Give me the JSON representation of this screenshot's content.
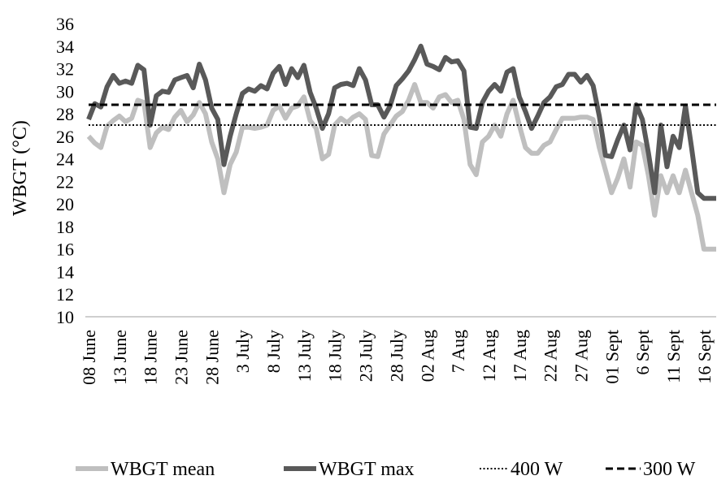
{
  "chart_data": {
    "type": "line",
    "ylabel": "WBGT (°C)",
    "xlabel": "",
    "ylim": [
      10,
      36
    ],
    "yticks": [
      10,
      12,
      14,
      16,
      18,
      20,
      22,
      24,
      26,
      28,
      30,
      32,
      34,
      36
    ],
    "grid": false,
    "legend_position": "bottom",
    "x_start": "08 June",
    "num_days": 103,
    "xtick_labels": [
      "08 June",
      "13 June",
      "18 June",
      "23 June",
      "28 June",
      "3 July",
      "8 July",
      "13 July",
      "18 July",
      "23 July",
      "28 July",
      "02 Aug",
      "7 Aug",
      "12 Aug",
      "17 Aug",
      "22 Aug",
      "27 Aug",
      "01 Sept",
      "6 Sept",
      "11 Sept",
      "16 Sept"
    ],
    "xtick_day_index": [
      0,
      5,
      10,
      15,
      20,
      25,
      30,
      35,
      40,
      45,
      50,
      55,
      60,
      65,
      70,
      75,
      80,
      85,
      90,
      95,
      100
    ],
    "series": [
      {
        "name": "WBGT  mean",
        "color": "#bfbfbf",
        "style": "solid-thick",
        "values": [
          26.0,
          25.4,
          25.0,
          26.9,
          27.4,
          27.8,
          27.3,
          27.6,
          29.2,
          29.0,
          25.0,
          26.3,
          26.8,
          26.6,
          27.7,
          28.3,
          27.3,
          27.9,
          29.0,
          28.0,
          25.5,
          24.0,
          21.0,
          23.5,
          24.6,
          26.8,
          26.8,
          26.7,
          26.8,
          27.0,
          28.3,
          28.7,
          27.6,
          28.5,
          28.7,
          29.5,
          27.4,
          26.7,
          24.0,
          24.4,
          27.0,
          27.6,
          27.2,
          27.7,
          28.0,
          27.5,
          24.3,
          24.2,
          26.2,
          27.0,
          27.8,
          28.2,
          29.2,
          30.6,
          29.0,
          29.0,
          28.5,
          29.5,
          29.7,
          29.0,
          29.2,
          27.5,
          23.5,
          22.6,
          25.5,
          26.0,
          27.0,
          26.0,
          28.0,
          29.2,
          27.0,
          25.0,
          24.5,
          24.5,
          25.2,
          25.5,
          26.6,
          27.6,
          27.6,
          27.6,
          27.7,
          27.7,
          27.5,
          25.0,
          23.0,
          21.0,
          22.3,
          24.0,
          21.5,
          25.5,
          25.2,
          22.5,
          19.0,
          22.5,
          21.0,
          22.5,
          21.0,
          23.0,
          21.0,
          19.0,
          16.0,
          16.0,
          16.0
        ]
      },
      {
        "name": "WBGT  max",
        "color": "#595959",
        "style": "solid-thick",
        "values": [
          27.5,
          28.9,
          28.6,
          30.4,
          31.4,
          30.7,
          30.9,
          30.7,
          32.3,
          31.9,
          27.0,
          29.6,
          30.0,
          29.9,
          31.0,
          31.2,
          31.4,
          30.3,
          32.4,
          31.0,
          28.5,
          27.5,
          23.5,
          26.0,
          28.0,
          29.8,
          30.2,
          30.0,
          30.5,
          30.2,
          31.6,
          32.2,
          30.6,
          32.0,
          31.2,
          32.3,
          29.9,
          28.5,
          26.7,
          28.0,
          30.3,
          30.6,
          30.7,
          30.5,
          32.0,
          31.0,
          28.8,
          28.8,
          27.7,
          28.7,
          30.5,
          31.1,
          31.8,
          32.8,
          34.0,
          32.4,
          32.2,
          31.9,
          33.0,
          32.6,
          32.7,
          31.8,
          26.8,
          26.7,
          29.0,
          30.0,
          30.6,
          30.0,
          31.7,
          32.0,
          29.5,
          28.2,
          26.7,
          27.8,
          29.0,
          29.5,
          30.4,
          30.6,
          31.5,
          31.5,
          30.8,
          31.4,
          30.5,
          27.8,
          24.3,
          24.2,
          25.7,
          27.0,
          24.8,
          28.8,
          27.5,
          24.5,
          21.0,
          27.0,
          23.3,
          26.0,
          25.0,
          28.7,
          25.0,
          21.0,
          20.5,
          20.5,
          20.5
        ]
      },
      {
        "name": "400 W",
        "color": "#000000",
        "style": "dotted",
        "constant": 27.0
      },
      {
        "name": "300 W",
        "color": "#000000",
        "style": "dashed",
        "constant": 28.8
      }
    ]
  }
}
